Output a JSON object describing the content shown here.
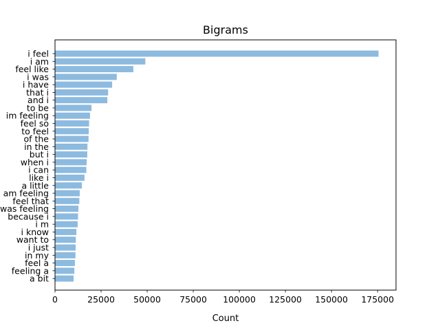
{
  "chart_data": {
    "type": "bar",
    "orientation": "horizontal",
    "title": "Bigrams",
    "xlabel": "Count",
    "ylabel": "",
    "xlim": [
      0,
      185000
    ],
    "xticks": [
      0,
      25000,
      50000,
      75000,
      100000,
      125000,
      150000,
      175000
    ],
    "bar_color": "#8dbadf",
    "grid": false,
    "categories": [
      "i feel",
      "i am",
      "feel like",
      "i was",
      "i have",
      "that i",
      "and i",
      "to be",
      "im feeling",
      "feel so",
      "to feel",
      "of the",
      "in the",
      "but i",
      "when i",
      "i can",
      "like i",
      "a little",
      "am feeling",
      "feel that",
      "was feeling",
      "because i",
      "i m",
      "i know",
      "want to",
      "i just",
      "in my",
      "feel a",
      "feeling a",
      "a bit"
    ],
    "values": [
      175500,
      49000,
      42500,
      33500,
      31000,
      28800,
      28400,
      19800,
      19000,
      18500,
      18300,
      18200,
      17600,
      17500,
      17200,
      17000,
      16000,
      14600,
      13400,
      13200,
      12700,
      12500,
      12300,
      11600,
      11300,
      11200,
      11100,
      10800,
      10500,
      10100
    ]
  }
}
